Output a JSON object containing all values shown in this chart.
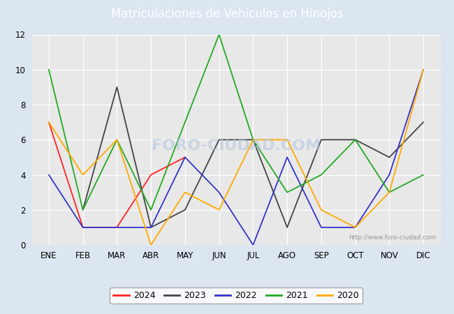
{
  "title": "Matriculaciones de Vehiculos en Hinojos",
  "title_bg_color": "#4472c4",
  "title_text_color": "#ffffff",
  "plot_bg_color": "#e8e8e8",
  "fig_bg_color": "#dce6f1",
  "months": [
    "ENE",
    "FEB",
    "MAR",
    "ABR",
    "MAY",
    "JUN",
    "JUL",
    "AGO",
    "SEP",
    "OCT",
    "NOV",
    "DIC"
  ],
  "series": {
    "2024": {
      "color": "#ff2222",
      "data": [
        7,
        1,
        1,
        4,
        5,
        null,
        null,
        null,
        null,
        null,
        null,
        null
      ]
    },
    "2023": {
      "color": "#444444",
      "data": [
        null,
        2,
        9,
        1,
        2,
        6,
        6,
        1,
        6,
        6,
        5,
        7
      ]
    },
    "2022": {
      "color": "#3333cc",
      "data": [
        4,
        1,
        1,
        1,
        5,
        3,
        0,
        5,
        1,
        1,
        4,
        10
      ]
    },
    "2021": {
      "color": "#22aa22",
      "data": [
        10,
        2,
        6,
        2,
        null,
        12,
        6,
        3,
        4,
        6,
        3,
        4
      ]
    },
    "2020": {
      "color": "#ffaa00",
      "data": [
        7,
        4,
        6,
        0,
        3,
        2,
        6,
        6,
        2,
        1,
        3,
        10
      ]
    }
  },
  "ylim": [
    0,
    12
  ],
  "yticks": [
    0,
    2,
    4,
    6,
    8,
    10,
    12
  ],
  "watermark": "http://www.foro-ciudad.com",
  "foro_watermark": "FORO-CIUDAD.COM",
  "legend_years": [
    "2024",
    "2023",
    "2022",
    "2021",
    "2020"
  ]
}
